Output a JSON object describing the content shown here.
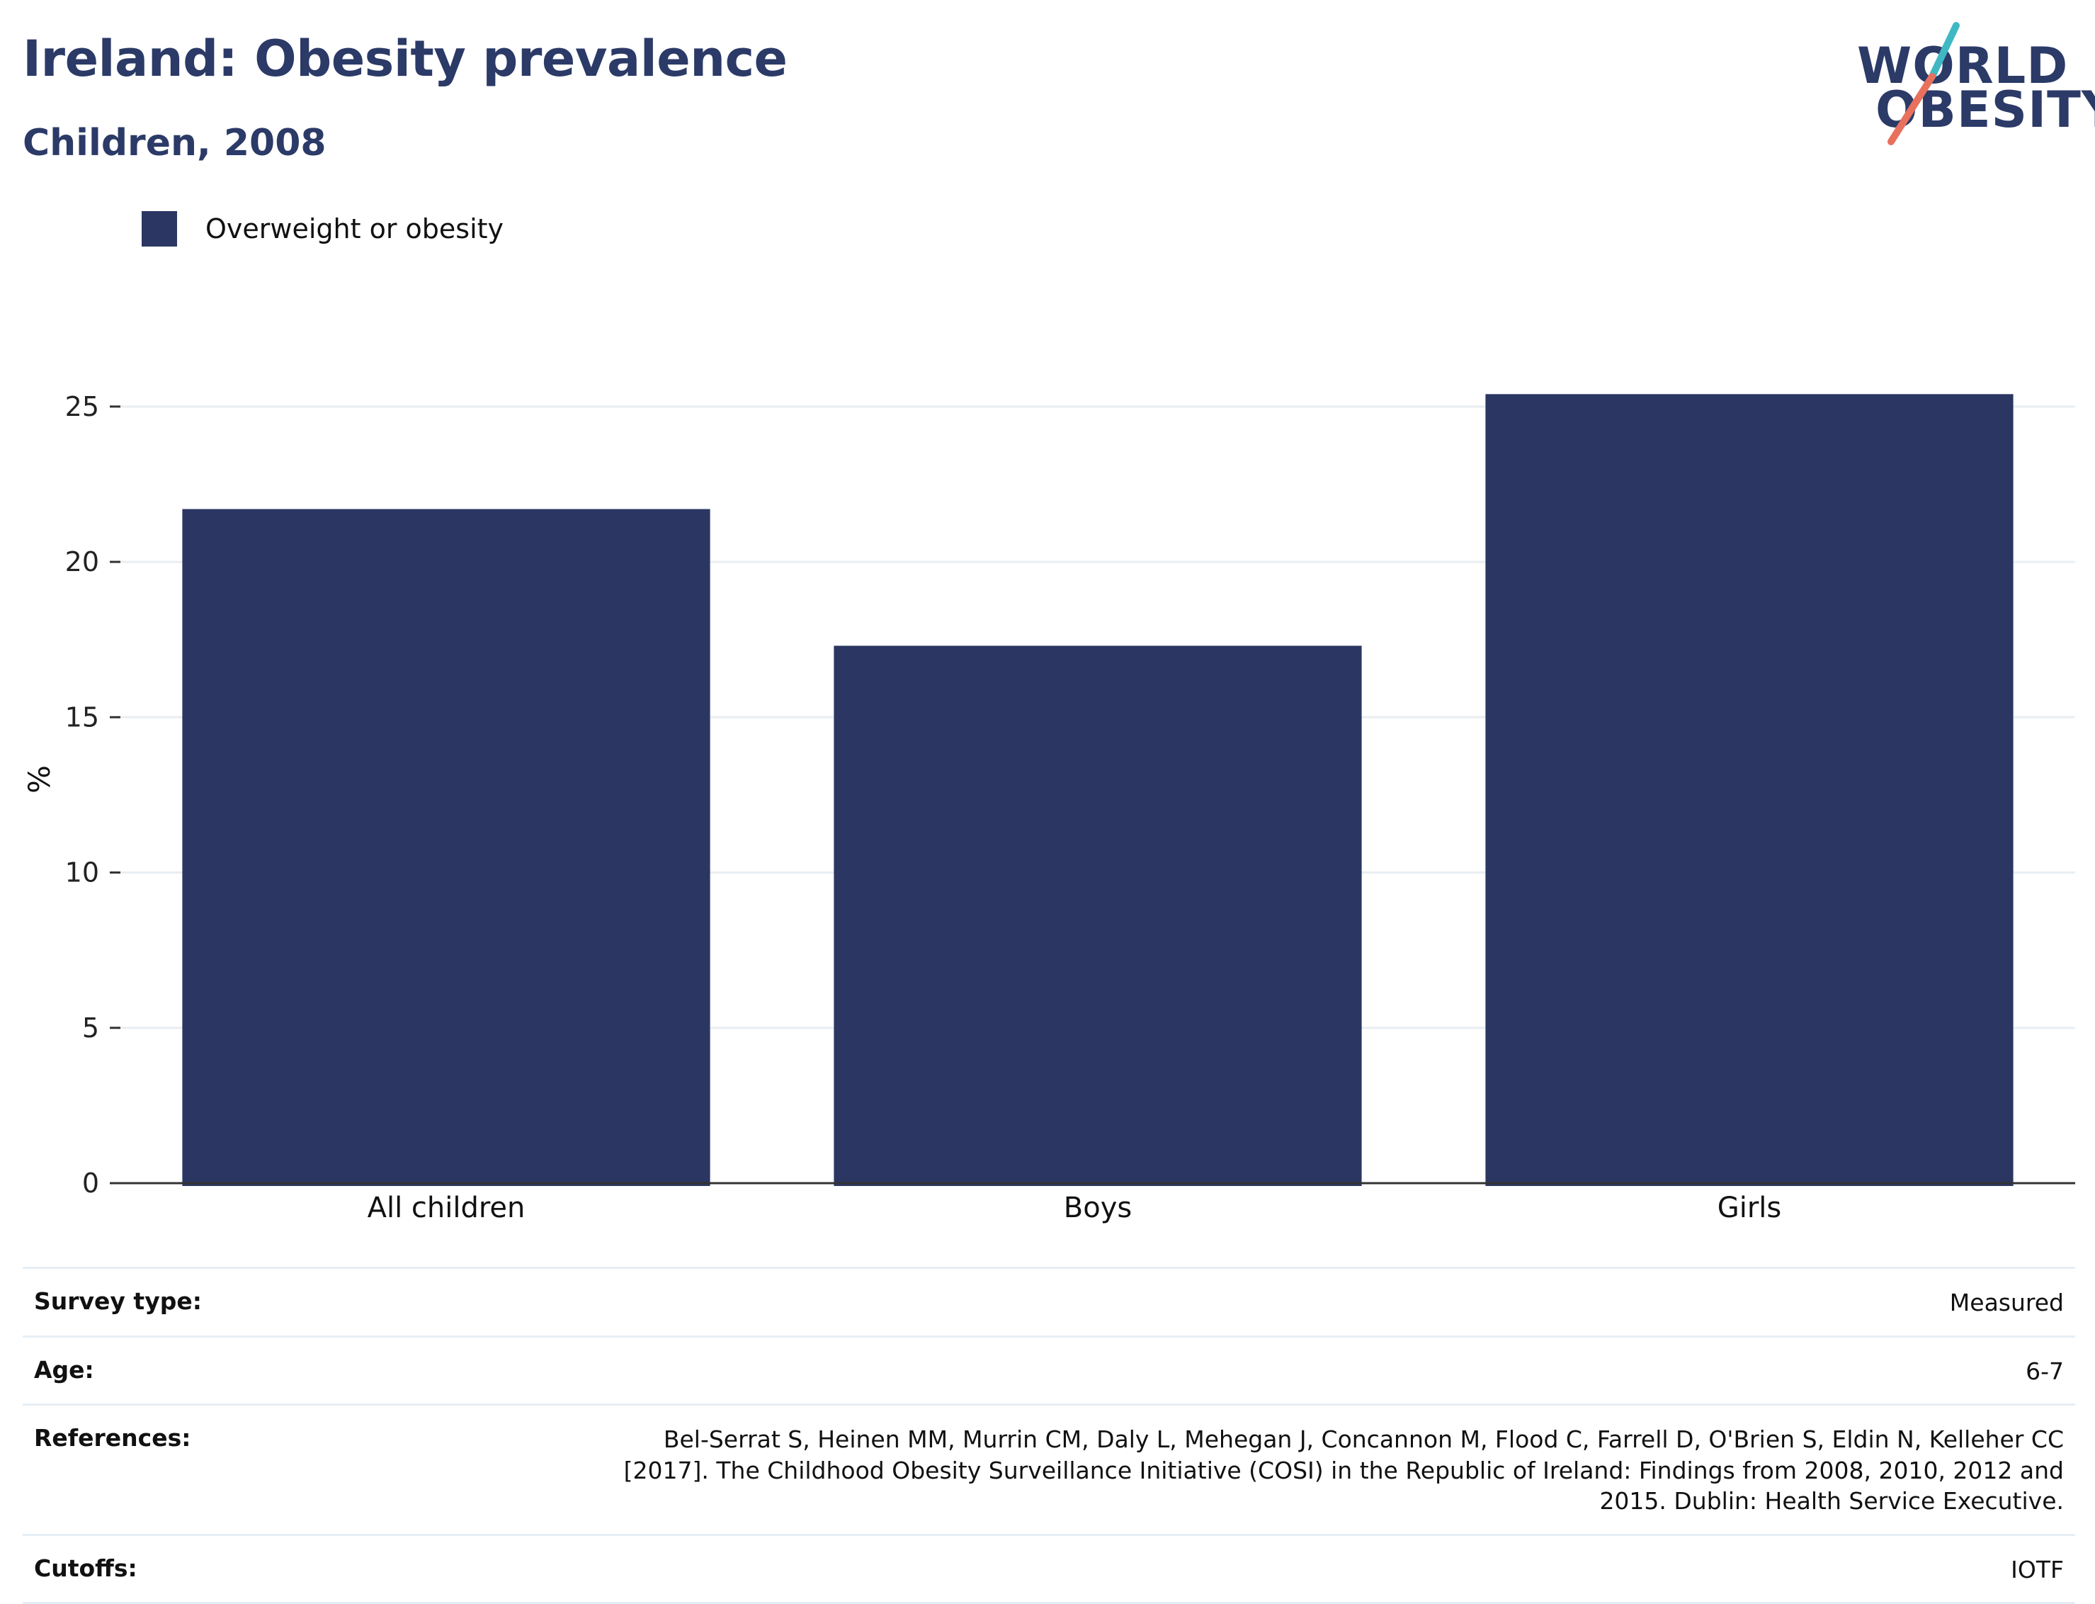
{
  "header": {
    "title": "Ireland: Obesity prevalence",
    "subtitle": "Children, 2008"
  },
  "logo": {
    "line1": "WORLD",
    "line2": "OBESITY",
    "colors": {
      "text": "#2b3a67",
      "slash_top": "#3fb8c4",
      "slash_bottom": "#e8715e"
    }
  },
  "legend": {
    "items": [
      {
        "label": "Overweight or obesity",
        "color": "#2b3762"
      }
    ]
  },
  "chart_data": {
    "type": "bar",
    "categories": [
      "All children",
      "Boys",
      "Girls"
    ],
    "series": [
      {
        "name": "Overweight or obesity",
        "values": [
          21.7,
          17.3,
          25.4
        ]
      }
    ],
    "ylabel": "%",
    "xlabel": "",
    "ylim": [
      0,
      26
    ],
    "yticks": [
      0,
      5,
      10,
      15,
      20,
      25
    ],
    "grid": true,
    "legend_position": "top-left",
    "bar_color": "#2b3762"
  },
  "info": {
    "rows": [
      {
        "key": "Survey type:",
        "value": "Measured"
      },
      {
        "key": "Age:",
        "value": "6-7"
      },
      {
        "key": "References:",
        "value": "Bel-Serrat S, Heinen MM, Murrin CM, Daly L, Mehegan J, Concannon M, Flood C, Farrell D, O'Brien S, Eldin N, Kelleher CC [2017]. The Childhood Obesity Surveillance Initiative (COSI) in the Republic of Ireland: Findings from 2008, 2010, 2012 and 2015. Dublin: Health Service Executive."
      },
      {
        "key": "Cutoffs:",
        "value": "IOTF"
      }
    ]
  }
}
